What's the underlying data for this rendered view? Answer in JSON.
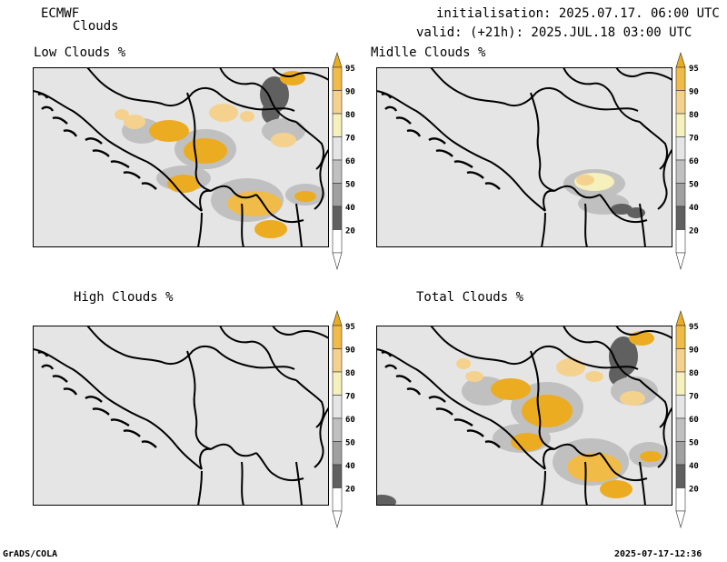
{
  "header": {
    "model": "ECMWF",
    "product": "Clouds",
    "init_line": "initialisation: 2025.07.17. 06:00 UTC",
    "valid_line": "valid: (+21h): 2025.JUL.18 03:00 UTC"
  },
  "panels": [
    {
      "title": "Low Clouds %",
      "has_clouds": true
    },
    {
      "title": "Midlle Clouds %",
      "has_clouds": true
    },
    {
      "title": "High Clouds %",
      "has_clouds": false
    },
    {
      "title": "Total Clouds %",
      "has_clouds": true
    }
  ],
  "colorbar": {
    "levels": [
      "95",
      "90",
      "80",
      "70",
      "60",
      "50",
      "40",
      "20"
    ],
    "colors": {
      "above_95": "#ebac22",
      "90_95": "#f0bb47",
      "80_90": "#f4d28e",
      "70_80": "#f5f0bc",
      "60_70": "#e5e5e5",
      "50_60": "#c0c0c0",
      "40_50": "#a0a0a0",
      "20_40": "#606060",
      "below_20": "#ffffff"
    }
  },
  "footer": {
    "left": "GrADS/COLA",
    "right": "2025-07-17-12:36"
  }
}
